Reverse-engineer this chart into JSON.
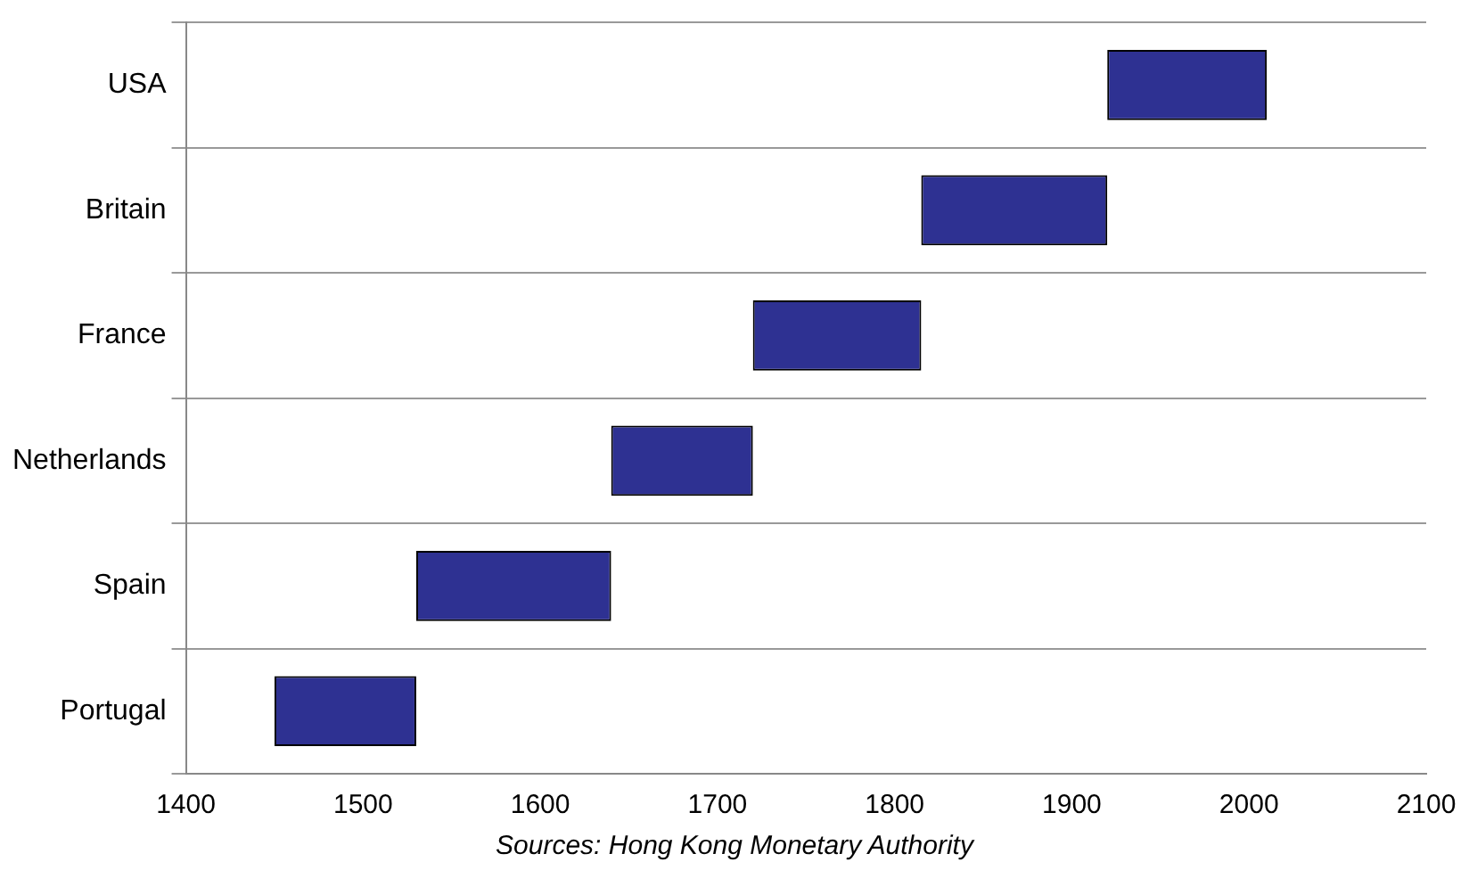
{
  "chart_data": {
    "type": "bar",
    "orientation": "horizontal",
    "categories": [
      "USA",
      "Britain",
      "France",
      "Netherlands",
      "Spain",
      "Portugal"
    ],
    "base": [
      1920,
      1815,
      1720,
      1640,
      1530,
      1450
    ],
    "values": [
      90,
      105,
      95,
      80,
      110,
      80
    ],
    "color": "#2e3192",
    "xlim": [
      1400,
      2100
    ],
    "xticks": [
      1400,
      1500,
      1600,
      1700,
      1800,
      1900,
      2000,
      2100
    ],
    "grid": "y",
    "legend": false,
    "annotations": [
      "Sources: Hong Kong Monetary Authority"
    ]
  }
}
